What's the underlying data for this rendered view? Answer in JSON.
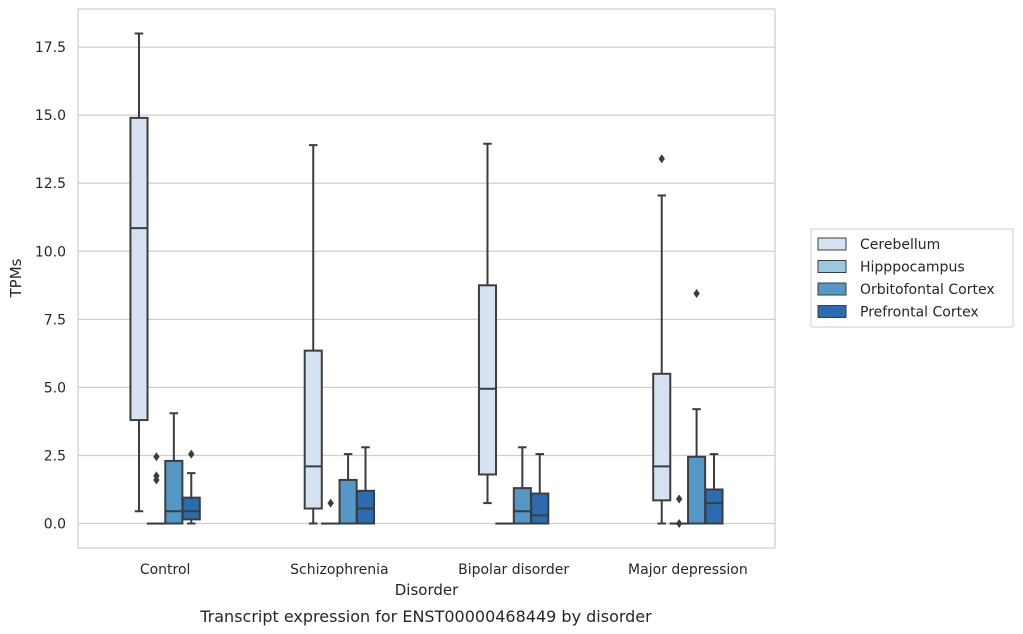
{
  "chart_data": {
    "type": "boxplot",
    "xlabel": "Disorder",
    "ylabel": "TPMs",
    "caption": "Transcript expression for ENST00000468449 by disorder",
    "categories": [
      "Control",
      "Schizophrenia",
      "Bipolar disorder",
      "Major depression"
    ],
    "ylim": [
      -0.9,
      18.9
    ],
    "yticks": [
      "0.0",
      "2.5",
      "5.0",
      "7.5",
      "10.0",
      "12.5",
      "15.0",
      "17.5"
    ],
    "ytick_values": [
      0,
      2.5,
      5,
      7.5,
      10,
      12.5,
      15,
      17.5
    ],
    "grid": true,
    "legend_position": "right",
    "colors": {
      "Cerebellum": "#d4e2f1",
      "Hipppocampus": "#9ac8e0",
      "Orbitofontal Cortex": "#5597c6",
      "Prefrontal Cortex": "#2b6cb0",
      "edge": "#3d3d3d",
      "grid": "#cfcfcf"
    },
    "series": [
      {
        "name": "Cerebellum",
        "boxes": [
          {
            "min": 0.45,
            "q1": 3.8,
            "median": 10.85,
            "q3": 14.9,
            "max": 18.0,
            "outliers": []
          },
          {
            "min": 0.0,
            "q1": 0.55,
            "median": 2.1,
            "q3": 6.35,
            "max": 13.9,
            "outliers": []
          },
          {
            "min": 0.75,
            "q1": 1.8,
            "median": 4.95,
            "q3": 8.75,
            "max": 13.95,
            "outliers": []
          },
          {
            "min": 0.0,
            "q1": 0.85,
            "median": 2.1,
            "q3": 5.5,
            "max": 12.05,
            "outliers": [
              13.4
            ]
          }
        ]
      },
      {
        "name": "Hipppocampus",
        "boxes": [
          {
            "min": 0.0,
            "q1": 0.0,
            "median": 0.0,
            "q3": 0.0,
            "max": 0.0,
            "outliers": [
              1.6,
              1.75,
              2.45
            ]
          },
          {
            "min": 0.0,
            "q1": 0.0,
            "median": 0.0,
            "q3": 0.0,
            "max": 0.0,
            "outliers": [
              0.75
            ]
          },
          {
            "min": 0.0,
            "q1": 0.0,
            "median": 0.0,
            "q3": 0.0,
            "max": 0.0,
            "outliers": []
          },
          {
            "min": 0.0,
            "q1": 0.0,
            "median": 0.0,
            "q3": 0.0,
            "max": 0.0,
            "outliers": [
              0.0,
              0.9
            ]
          }
        ]
      },
      {
        "name": "Orbitofontal Cortex",
        "boxes": [
          {
            "min": 0.0,
            "q1": 0.0,
            "median": 0.45,
            "q3": 2.3,
            "max": 4.05,
            "outliers": []
          },
          {
            "min": 0.0,
            "q1": 0.0,
            "median": 0.0,
            "q3": 1.6,
            "max": 2.55,
            "outliers": []
          },
          {
            "min": 0.0,
            "q1": 0.0,
            "median": 0.45,
            "q3": 1.3,
            "max": 2.8,
            "outliers": []
          },
          {
            "min": 0.0,
            "q1": 0.0,
            "median": 0.0,
            "q3": 2.45,
            "max": 4.2,
            "outliers": [
              8.45
            ]
          }
        ]
      },
      {
        "name": "Prefrontal Cortex",
        "boxes": [
          {
            "min": 0.0,
            "q1": 0.15,
            "median": 0.45,
            "q3": 0.95,
            "max": 1.85,
            "outliers": [
              2.55
            ]
          },
          {
            "min": 0.0,
            "q1": 0.0,
            "median": 0.55,
            "q3": 1.2,
            "max": 2.8,
            "outliers": []
          },
          {
            "min": 0.0,
            "q1": 0.0,
            "median": 0.3,
            "q3": 1.1,
            "max": 2.55,
            "outliers": []
          },
          {
            "min": 0.0,
            "q1": 0.0,
            "median": 0.75,
            "q3": 1.25,
            "max": 2.55,
            "outliers": []
          }
        ]
      }
    ]
  }
}
